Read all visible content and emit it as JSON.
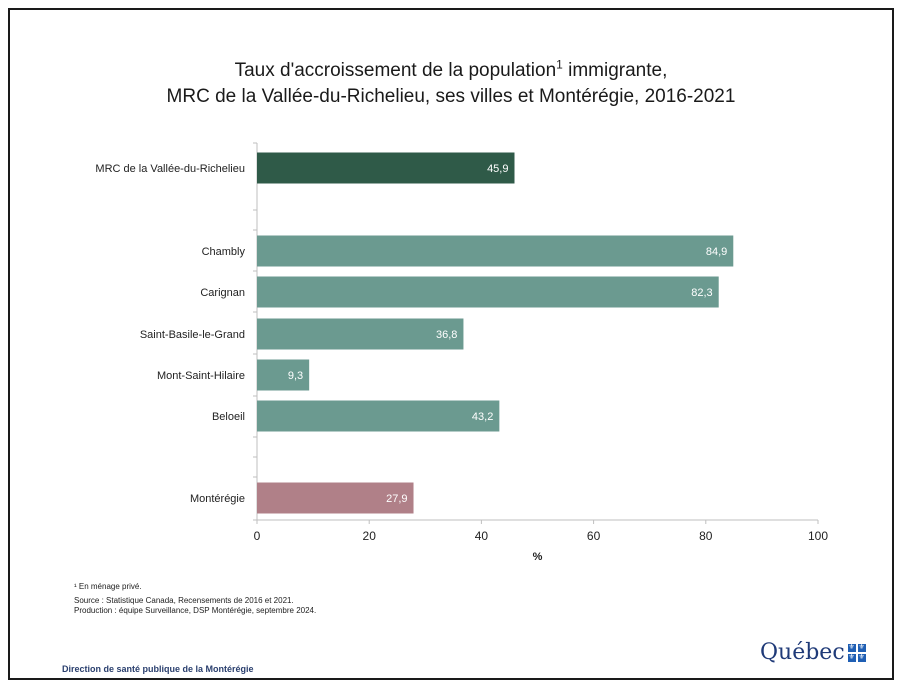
{
  "title": {
    "line1_pre": "Taux d'accroissement de la population",
    "line1_sup": "1",
    "line1_post": " immigrante,",
    "line2": "MRC de la Vallée-du-Richelieu, ses villes et Montérégie, 2016-2021"
  },
  "chart_data": {
    "type": "bar",
    "orientation": "horizontal",
    "categories": [
      "MRC de la Vallée-du-Richelieu",
      "Chambly",
      "Carignan",
      "Saint-Basile-le-Grand",
      "Mont-Saint-Hilaire",
      "Beloeil",
      "Montérégie"
    ],
    "values": [
      45.9,
      84.9,
      82.3,
      36.8,
      9.3,
      43.2,
      27.9
    ],
    "value_labels": [
      "45,9",
      "84,9",
      "82,3",
      "36,8",
      "9,3",
      "43,2",
      "27,9"
    ],
    "bar_colors": [
      "#2f5a48",
      "#6b9a90",
      "#6b9a90",
      "#6b9a90",
      "#6b9a90",
      "#6b9a90",
      "#b08088"
    ],
    "xlabel": "%",
    "xlim": [
      0,
      100
    ],
    "xticks": [
      0,
      20,
      40,
      60,
      80,
      100
    ],
    "grid": false
  },
  "footnotes": {
    "note1": "¹ En ménage privé.",
    "source": "Source : Statistique Canada, Recensements de 2016 et 2021.",
    "production": "Production : équipe Surveillance, DSP Montérégie, septembre 2024."
  },
  "footer": {
    "organization": "Direction de santé publique de la Montérégie"
  },
  "logo": {
    "text": "Québec",
    "icon": "fleur-de-lis-flag-icon"
  }
}
